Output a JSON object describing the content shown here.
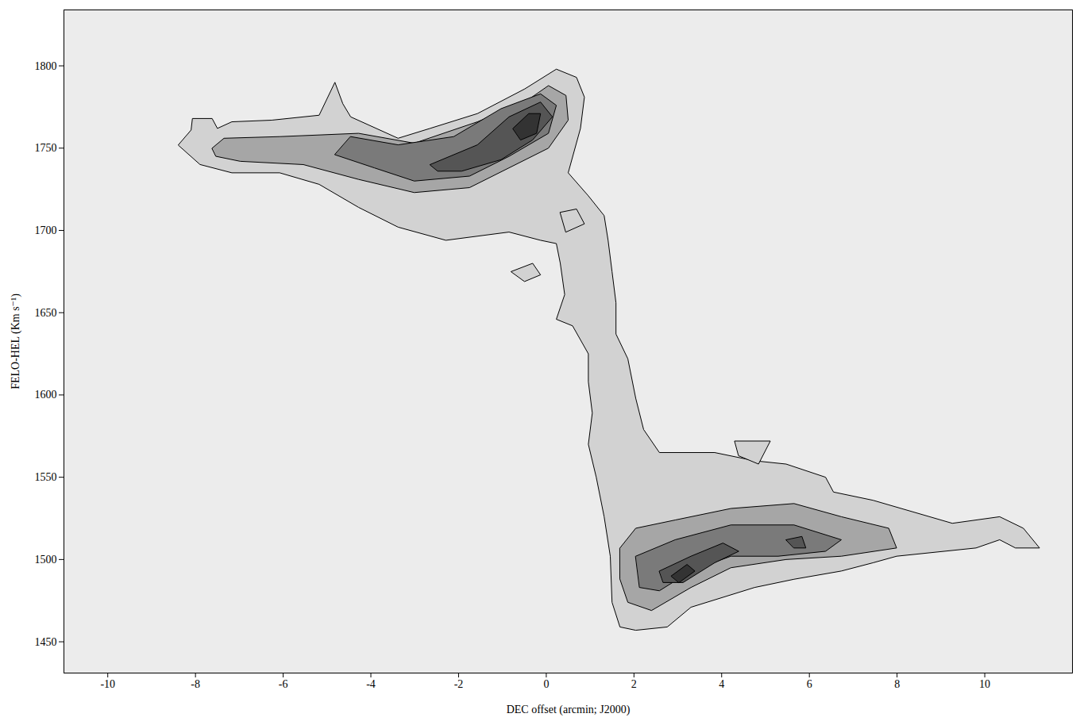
{
  "chart_data": {
    "type": "contour",
    "xlabel": "DEC offset (arcmin; J2000)",
    "ylabel": "FELO-HEL (Km s⁻¹)",
    "xlim": [
      -11,
      12
    ],
    "ylim": [
      1431,
      1834
    ],
    "xticks": [
      -10,
      -8,
      -6,
      -4,
      -2,
      0,
      2,
      4,
      6,
      8,
      10
    ],
    "yticks": [
      1450,
      1500,
      1550,
      1600,
      1650,
      1700,
      1750,
      1800
    ],
    "grid": false,
    "series": [
      {
        "color": "#d2d2d2",
        "x": [
          -8.39,
          -8.1,
          -8.07,
          -7.62,
          -7.5,
          -7.17,
          -6.26,
          -5.18,
          -4.82,
          -4.64,
          -4.46,
          -3.38,
          -2.65,
          -1.57,
          -0.49,
          0.23,
          0.69,
          0.87,
          0.78,
          0.5,
          0.96,
          1.32,
          1.41,
          1.5,
          1.59,
          1.59,
          1.86,
          2.04,
          2.22,
          2.58,
          3.84,
          4.75,
          5.47,
          6.37,
          6.55,
          7.45,
          9.26,
          10.34,
          10.88,
          11.25,
          10.7,
          10.34,
          9.8,
          7.99,
          7.45,
          6.73,
          5.65,
          4.75,
          3.3,
          2.76,
          2.04,
          1.68,
          1.5,
          1.46,
          1.32,
          1.14,
          0.96,
          1.05,
          0.96,
          0.96,
          0.6,
          0.23,
          0.42,
          0.32,
          0.23,
          -0.13,
          -0.85,
          -2.29,
          -3.38,
          -4.28,
          -5.18,
          -6.08,
          -7.17,
          -7.89
        ],
        "y": [
          1752,
          1761,
          1768,
          1768,
          1762,
          1766,
          1767,
          1770,
          1790,
          1777,
          1769,
          1756,
          1762,
          1771,
          1786,
          1798,
          1793,
          1781,
          1762,
          1735,
          1721,
          1709,
          1694,
          1675,
          1656,
          1637,
          1622,
          1598,
          1579,
          1565,
          1565,
          1560,
          1558,
          1550,
          1541,
          1536,
          1522,
          1526,
          1519,
          1507,
          1507,
          1512,
          1507,
          1502,
          1498,
          1493,
          1488,
          1483,
          1471,
          1459,
          1457,
          1459,
          1474,
          1502,
          1526,
          1550,
          1570,
          1589,
          1608,
          1625,
          1642,
          1646,
          1661,
          1680,
          1692,
          1694,
          1699,
          1694,
          1702,
          1714,
          1728,
          1735,
          1735,
          1740
        ]
      },
      {
        "color": "#d2d2d2",
        "x": [
          0.32,
          0.69,
          0.87,
          0.45
        ],
        "y": [
          1711,
          1713,
          1704,
          1699
        ]
      },
      {
        "color": "#d2d2d2",
        "x": [
          -0.8,
          -0.31,
          -0.13,
          -0.49
        ],
        "y": [
          1675,
          1680,
          1673,
          1669
        ]
      },
      {
        "color": "#d2d2d2",
        "x": [
          4.3,
          5.11,
          4.84,
          4.39
        ],
        "y": [
          1572,
          1572,
          1558,
          1563
        ]
      },
      {
        "color": "#a6a6a6",
        "x": [
          -7.62,
          -7.35,
          -6.08,
          -4.28,
          -3.01,
          -1.57,
          -0.49,
          0.05,
          0.45,
          0.5,
          0.05,
          -0.85,
          -1.75,
          -3.01,
          -4.28,
          -5.54,
          -6.98,
          -7.53
        ],
        "y": [
          1750,
          1756,
          1757,
          1759,
          1753,
          1766,
          1778,
          1788,
          1782,
          1767,
          1750,
          1738,
          1726,
          1723,
          1731,
          1740,
          1742,
          1745
        ]
      },
      {
        "color": "#a6a6a6",
        "x": [
          1.68,
          2.04,
          2.94,
          4.21,
          5.65,
          6.73,
          7.81,
          7.99,
          6.73,
          5.47,
          4.21,
          3.3,
          2.4,
          1.86,
          1.68
        ],
        "y": [
          1507,
          1519,
          1524,
          1531,
          1534,
          1526,
          1519,
          1507,
          1502,
          1500,
          1495,
          1483,
          1469,
          1474,
          1488
        ]
      },
      {
        "color": "#7a7a7a",
        "x": [
          -4.46,
          -3.38,
          -2.11,
          -1.03,
          -0.13,
          0.23,
          0.05,
          -0.85,
          -1.75,
          -3.01,
          -3.92,
          -4.82
        ],
        "y": [
          1757,
          1752,
          1757,
          1774,
          1783,
          1776,
          1759,
          1745,
          1733,
          1730,
          1738,
          1746
        ]
      },
      {
        "color": "#7a7a7a",
        "x": [
          2.04,
          2.94,
          4.21,
          5.65,
          6.73,
          6.37,
          5.29,
          4.21,
          3.3,
          2.58,
          2.13
        ],
        "y": [
          1502,
          1512,
          1521,
          1521,
          1512,
          1505,
          1502,
          1502,
          1493,
          1481,
          1483
        ]
      },
      {
        "color": "#555555",
        "x": [
          -2.65,
          -1.57,
          -0.85,
          -0.13,
          0.14,
          -0.31,
          -1.03,
          -1.93,
          -2.47
        ],
        "y": [
          1740,
          1752,
          1769,
          1778,
          1769,
          1755,
          1743,
          1736,
          1736
        ]
      },
      {
        "color": "#555555",
        "x": [
          2.58,
          3.3,
          4.03,
          4.39,
          3.84,
          3.12,
          2.67
        ],
        "y": [
          1493,
          1502,
          1510,
          1505,
          1498,
          1486,
          1486
        ]
      },
      {
        "color": "#555555",
        "x": [
          5.47,
          5.83,
          5.92,
          5.65
        ],
        "y": [
          1512,
          1514,
          1507,
          1507
        ]
      },
      {
        "color": "#333333",
        "x": [
          -0.76,
          -0.4,
          -0.13,
          -0.22,
          -0.58
        ],
        "y": [
          1762,
          1771,
          1771,
          1759,
          1755
        ]
      },
      {
        "color": "#333333",
        "x": [
          2.85,
          3.21,
          3.39,
          3.03
        ],
        "y": [
          1490,
          1497,
          1493,
          1486
        ]
      }
    ]
  }
}
